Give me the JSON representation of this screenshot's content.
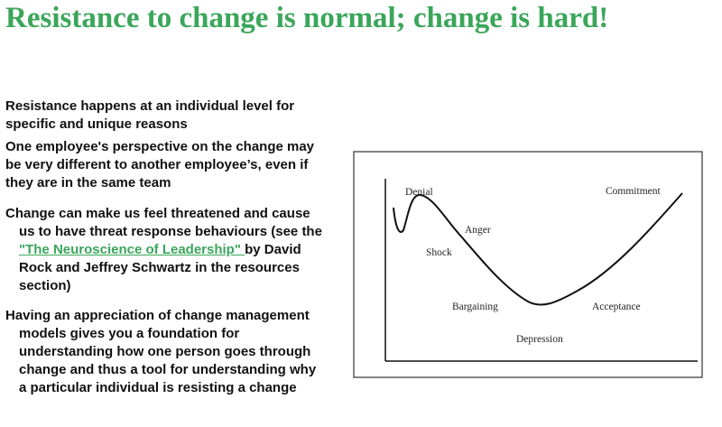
{
  "title": "Resistance to change is normal; change is hard!",
  "bullets": [
    {
      "text": "Resistance happens at an individual level for specific and unique reasons"
    },
    {
      "text": "One employee's  perspective on the change may be very different to another employee’s, even if they are in  the same team"
    },
    {
      "text": "Change can make us feel threatened and cause us to have threat response behaviours (see the ",
      "link": "\"The Neuroscience of Leadership\" ",
      "after": "by David Rock and Jeffrey Schwartz in the resources section)"
    },
    {
      "text": "Having an appreciation of change management models gives you a foundation for understanding how one person goes through change and thus a tool for  understanding why a particular individual is resisting a change"
    }
  ],
  "diagram": {
    "labels": [
      "Denial",
      "Commitment",
      "Anger",
      "Shock",
      "Bargaining",
      "Acceptance",
      "Depression"
    ]
  }
}
